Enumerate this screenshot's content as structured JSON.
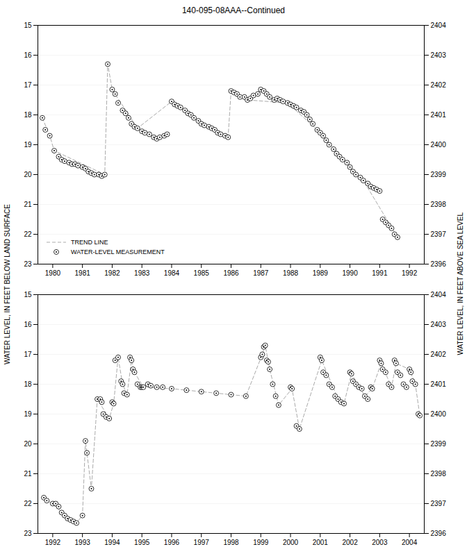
{
  "chart_data": [
    {
      "type": "line",
      "title": "140-095-08AAA--Continued",
      "ylabel": "WATER LEVEL, IN FEET BELOW LAND SURFACE",
      "y2label": "WATER LEVEL, IN FEET ABOVE SEA LEVEL",
      "xlim": [
        1979.5,
        1992.5
      ],
      "xticks": [
        1980,
        1981,
        1982,
        1983,
        1984,
        1985,
        1986,
        1987,
        1988,
        1989,
        1990,
        1991,
        1992
      ],
      "ylim": [
        23,
        15
      ],
      "yticks": [
        15,
        16,
        17,
        18,
        19,
        20,
        21,
        22,
        23
      ],
      "y2lim": [
        2396,
        2404
      ],
      "y2ticks": [
        2396,
        2397,
        2398,
        2399,
        2400,
        2401,
        2402,
        2403,
        2404
      ],
      "grid": true,
      "legend": "lower left",
      "series": [
        {
          "name": "TREND LINE",
          "type": "line",
          "line_style": "dashed",
          "color": "#aaaaaa",
          "x": [
            1979.65,
            1979.9,
            1980.05,
            1981.75,
            1981.85,
            1982.0,
            1982.85,
            1984.0,
            1985.0,
            1985.9,
            1986.0,
            1986.45,
            1986.55,
            1987.9,
            1988.9,
            1990.45,
            1991.6
          ],
          "values": [
            18.1,
            18.7,
            19.2,
            20.0,
            16.3,
            17.15,
            18.45,
            17.55,
            18.3,
            18.75,
            17.2,
            17.4,
            17.5,
            17.6,
            18.5,
            20.2,
            22.1
          ]
        },
        {
          "name": "WATER-LEVEL MEASUREMENT",
          "type": "scatter",
          "marker": "circle",
          "color": "black",
          "x": [
            1979.65,
            1979.75,
            1979.9,
            1980.05,
            1980.2,
            1980.3,
            1980.4,
            1980.55,
            1980.65,
            1980.75,
            1980.85,
            1981.0,
            1981.1,
            1981.2,
            1981.3,
            1981.4,
            1981.55,
            1981.65,
            1981.75,
            1981.85,
            1982.0,
            1982.1,
            1982.2,
            1982.35,
            1982.45,
            1982.55,
            1982.65,
            1982.75,
            1982.85,
            1983.0,
            1983.1,
            1983.25,
            1983.4,
            1983.5,
            1983.6,
            1983.75,
            1983.85,
            1984.0,
            1984.1,
            1984.2,
            1984.3,
            1984.45,
            1984.55,
            1984.65,
            1984.75,
            1984.9,
            1985.0,
            1985.1,
            1985.25,
            1985.35,
            1985.45,
            1985.55,
            1985.65,
            1985.8,
            1985.9,
            1986.0,
            1986.1,
            1986.2,
            1986.3,
            1986.45,
            1986.55,
            1986.65,
            1986.75,
            1986.9,
            1987.0,
            1987.1,
            1987.2,
            1987.3,
            1987.45,
            1987.55,
            1987.65,
            1987.75,
            1987.9,
            1988.0,
            1988.1,
            1988.2,
            1988.35,
            1988.45,
            1988.55,
            1988.65,
            1988.75,
            1988.9,
            1989.0,
            1989.1,
            1989.2,
            1989.3,
            1989.45,
            1989.55,
            1989.65,
            1989.75,
            1989.9,
            1990.0,
            1990.1,
            1990.2,
            1990.35,
            1990.45,
            1990.6,
            1990.7,
            1990.8,
            1990.9,
            1991.0,
            1991.1,
            1991.2,
            1991.3,
            1991.4,
            1991.5,
            1991.6
          ],
          "values": [
            18.1,
            18.5,
            18.7,
            19.2,
            19.4,
            19.5,
            19.55,
            19.6,
            19.65,
            19.65,
            19.7,
            19.75,
            19.8,
            19.9,
            19.95,
            20.0,
            20.0,
            20.05,
            20.0,
            16.3,
            17.15,
            17.3,
            17.6,
            17.85,
            17.95,
            18.1,
            18.3,
            18.4,
            18.45,
            18.55,
            18.6,
            18.65,
            18.75,
            18.8,
            18.75,
            18.7,
            18.65,
            17.55,
            17.65,
            17.7,
            17.75,
            17.85,
            17.95,
            18.0,
            18.1,
            18.2,
            18.3,
            18.35,
            18.4,
            18.45,
            18.5,
            18.6,
            18.65,
            18.7,
            18.75,
            17.2,
            17.25,
            17.3,
            17.4,
            17.4,
            17.5,
            17.45,
            17.35,
            17.3,
            17.15,
            17.2,
            17.3,
            17.4,
            17.5,
            17.45,
            17.5,
            17.55,
            17.6,
            17.65,
            17.7,
            17.75,
            17.85,
            17.9,
            18.0,
            18.15,
            18.3,
            18.5,
            18.6,
            18.7,
            18.85,
            19.0,
            19.15,
            19.3,
            19.4,
            19.5,
            19.6,
            19.75,
            19.9,
            20.0,
            20.1,
            20.2,
            20.3,
            20.4,
            20.45,
            20.5,
            20.55,
            21.5,
            21.6,
            21.7,
            21.8,
            22.0,
            22.1
          ]
        }
      ]
    },
    {
      "type": "line",
      "xlim": [
        1991.5,
        2004.5
      ],
      "xticks": [
        1992,
        1993,
        1994,
        1995,
        1996,
        1997,
        1998,
        1999,
        2000,
        2001,
        2002,
        2003,
        2004
      ],
      "ylim": [
        23,
        15
      ],
      "yticks": [
        15,
        16,
        17,
        18,
        19,
        20,
        21,
        22,
        23
      ],
      "y2lim": [
        2396,
        2404
      ],
      "y2ticks": [
        2396,
        2397,
        2398,
        2399,
        2400,
        2401,
        2402,
        2403,
        2404
      ],
      "grid": true,
      "series": [
        {
          "type": "line",
          "line_style": "dashed",
          "color": "#aaaaaa",
          "x": [
            1991.7,
            1992.8,
            1993.0,
            1993.1,
            1993.15,
            1993.3,
            1993.5,
            1993.9,
            1994.05,
            1994.2,
            1994.35,
            1994.5,
            1994.65,
            1994.75,
            1995.05,
            1996.0,
            1997.5,
            1998.5,
            1999.05,
            1999.15,
            1999.3,
            1999.6,
            2000.05,
            2000.3,
            2001.05,
            2001.6,
            2001.8,
            2002.05,
            2002.5,
            2002.75,
            2003.05,
            2003.4,
            2003.55,
            2004.0,
            2004.2,
            2004.35
          ],
          "values": [
            21.8,
            22.65,
            22.4,
            19.9,
            20.3,
            21.5,
            18.5,
            19.15,
            18.65,
            17.1,
            18.0,
            18.35,
            17.2,
            17.6,
            18.1,
            18.15,
            18.3,
            18.4,
            17.0,
            16.7,
            17.5,
            18.7,
            18.15,
            19.5,
            17.2,
            18.5,
            18.65,
            17.65,
            18.4,
            18.15,
            17.3,
            18.1,
            17.3,
            17.5,
            18.0,
            19.05
          ]
        },
        {
          "type": "scatter",
          "marker": "circle",
          "color": "black",
          "x": [
            1991.7,
            1991.8,
            1992.0,
            1992.1,
            1992.2,
            1992.3,
            1992.4,
            1992.5,
            1992.6,
            1992.7,
            1992.8,
            1993.0,
            1993.1,
            1993.15,
            1993.3,
            1993.5,
            1993.6,
            1993.65,
            1993.7,
            1993.8,
            1993.9,
            1994.0,
            1994.05,
            1994.1,
            1994.2,
            1994.3,
            1994.35,
            1994.4,
            1994.5,
            1994.6,
            1994.65,
            1994.7,
            1994.75,
            1994.85,
            1994.95,
            1995.0,
            1995.05,
            1995.2,
            1995.3,
            1995.5,
            1995.7,
            1996.0,
            1996.5,
            1997.0,
            1997.5,
            1998.0,
            1998.5,
            1999.0,
            1999.05,
            1999.1,
            1999.15,
            1999.2,
            1999.25,
            1999.3,
            1999.4,
            1999.5,
            1999.6,
            2000.0,
            2000.05,
            2000.2,
            2000.3,
            2001.0,
            2001.05,
            2001.1,
            2001.2,
            2001.3,
            2001.4,
            2001.5,
            2001.6,
            2001.7,
            2001.8,
            2002.0,
            2002.05,
            2002.1,
            2002.2,
            2002.3,
            2002.4,
            2002.5,
            2002.6,
            2002.7,
            2002.75,
            2003.0,
            2003.05,
            2003.1,
            2003.2,
            2003.3,
            2003.4,
            2003.5,
            2003.55,
            2003.6,
            2003.7,
            2003.8,
            2003.9,
            2004.0,
            2004.05,
            2004.1,
            2004.2,
            2004.3,
            2004.35
          ],
          "values": [
            21.8,
            21.9,
            22.0,
            22.0,
            22.1,
            22.3,
            22.4,
            22.5,
            22.55,
            22.6,
            22.65,
            22.4,
            19.9,
            20.3,
            21.5,
            18.5,
            18.5,
            18.6,
            19.0,
            19.1,
            19.15,
            18.6,
            18.65,
            17.2,
            17.1,
            17.9,
            18.0,
            18.3,
            18.35,
            17.1,
            17.2,
            17.5,
            17.6,
            18.0,
            18.1,
            18.1,
            18.1,
            18.0,
            18.05,
            18.1,
            18.1,
            18.15,
            18.2,
            18.25,
            18.3,
            18.35,
            18.4,
            17.1,
            17.0,
            16.75,
            16.7,
            17.2,
            17.25,
            17.5,
            18.0,
            18.4,
            18.7,
            18.1,
            18.15,
            19.4,
            19.5,
            17.1,
            17.2,
            17.6,
            17.7,
            18.0,
            18.1,
            18.4,
            18.5,
            18.6,
            18.65,
            17.6,
            17.65,
            17.9,
            18.0,
            18.1,
            18.15,
            18.4,
            18.5,
            18.1,
            18.15,
            17.2,
            17.3,
            17.5,
            17.6,
            18.0,
            18.1,
            17.2,
            17.3,
            17.6,
            17.7,
            18.0,
            18.1,
            17.5,
            17.6,
            17.9,
            18.0,
            19.0,
            19.05
          ]
        }
      ]
    }
  ]
}
